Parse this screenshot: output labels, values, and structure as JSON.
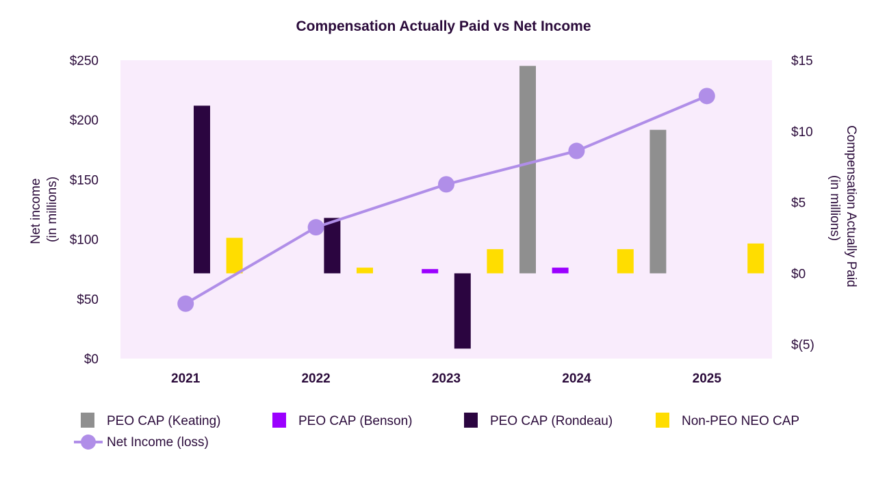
{
  "chart_data": {
    "type": "bar+line",
    "title": "Compensation Actually Paid vs Net Income",
    "categories": [
      "2021",
      "2022",
      "2023",
      "2024",
      "2025"
    ],
    "left_axis": {
      "label_line1": "Net income",
      "label_line2": "(in millions)",
      "ylim": [
        0,
        250
      ],
      "ticks": [
        0,
        50,
        100,
        150,
        200,
        250
      ],
      "tick_labels": [
        "$0",
        "$50",
        "$100",
        "$150",
        "$200",
        "$250"
      ]
    },
    "right_axis": {
      "label_line1": "Compensation Actually Paid",
      "label_line2": "(in millions)",
      "ylim": [
        -6,
        15
      ],
      "ticks": [
        -5,
        0,
        5,
        10,
        15
      ],
      "tick_labels": [
        "$(5)",
        "$0",
        "$5",
        "$10",
        "$15"
      ]
    },
    "bar_series": [
      {
        "name": "PEO CAP (Keating)",
        "color": "#8f8f8f",
        "values": [
          null,
          null,
          null,
          14.6,
          10.1
        ]
      },
      {
        "name": "PEO CAP (Benson)",
        "color": "#9b00ff",
        "values": [
          null,
          null,
          0.3,
          0.4,
          null
        ]
      },
      {
        "name": "PEO CAP (Rondeau)",
        "color": "#2b0540",
        "values": [
          11.8,
          3.9,
          -5.3,
          null,
          null
        ]
      },
      {
        "name": "Non-PEO NEO CAP",
        "color": "#ffdd00",
        "values": [
          2.5,
          0.4,
          1.7,
          1.7,
          2.1
        ]
      }
    ],
    "line_series": {
      "name": "Net Income (loss)",
      "color": "#b08ee8",
      "values": [
        46,
        110,
        146,
        174,
        220
      ]
    },
    "plot_background": "#f9ecfc",
    "grid": false,
    "legend_position": "bottom"
  }
}
